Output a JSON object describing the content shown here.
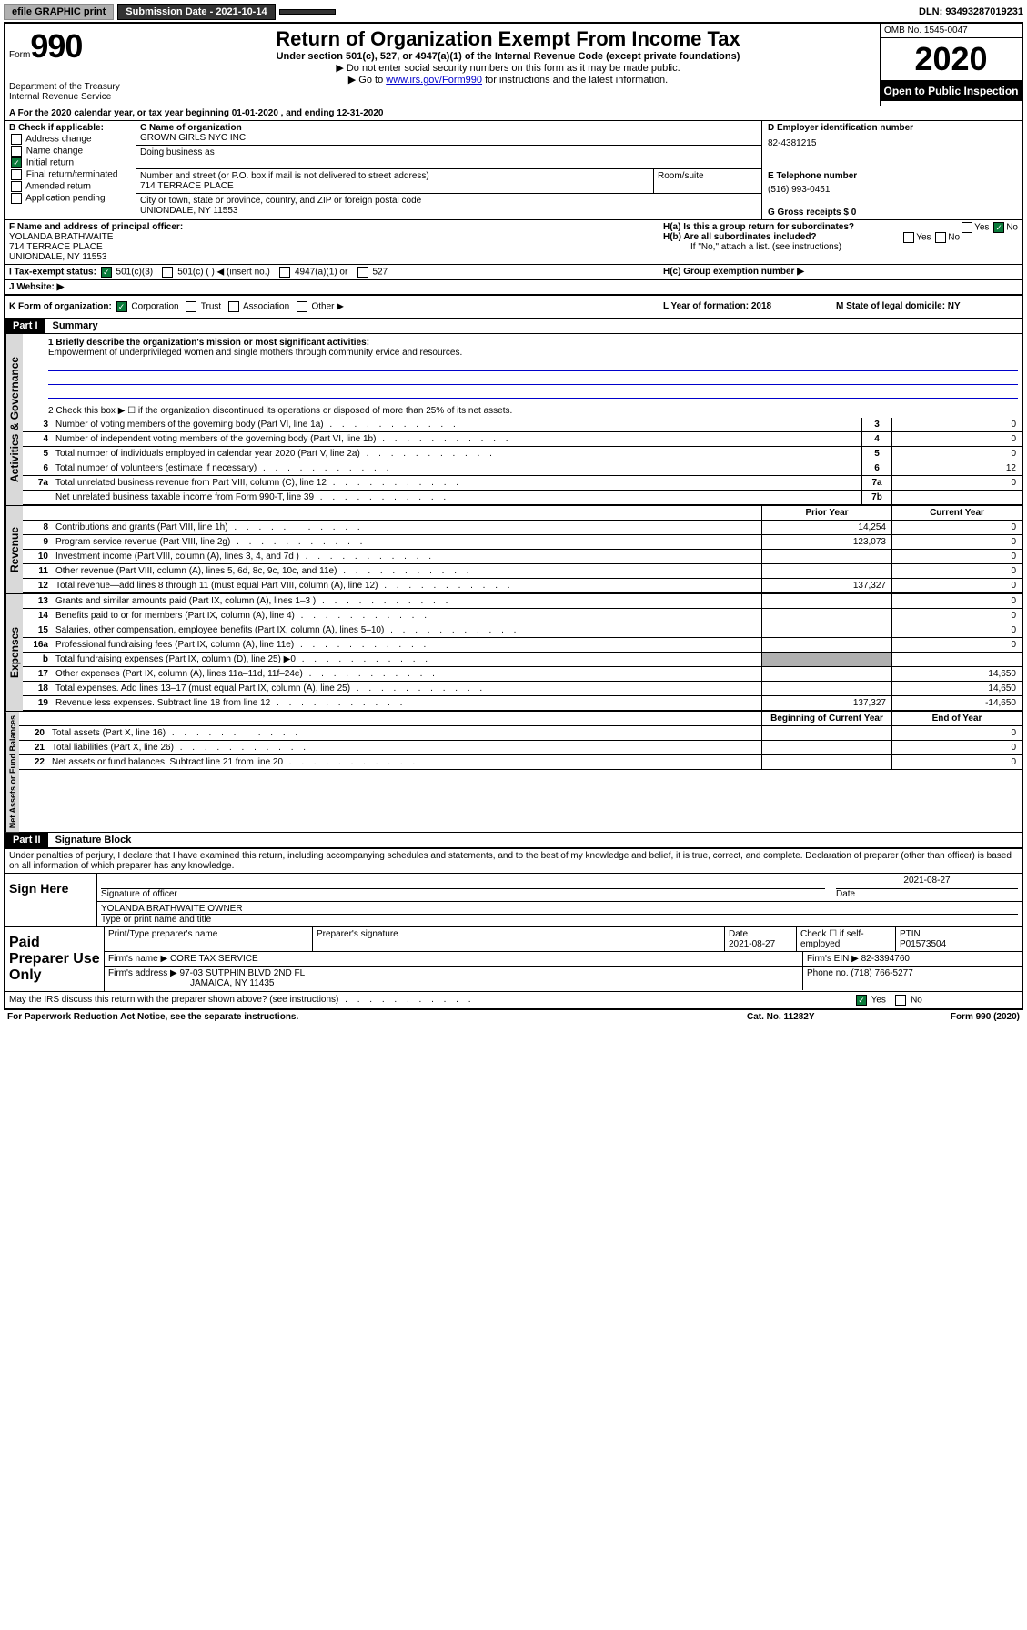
{
  "topbar": {
    "efile": "efile GRAPHIC print",
    "submission": "Submission Date - 2021-10-14",
    "dln": "DLN: 93493287019231"
  },
  "header": {
    "form_label": "Form",
    "form_number": "990",
    "dept": "Department of the Treasury\nInternal Revenue Service",
    "title": "Return of Organization Exempt From Income Tax",
    "subtitle": "Under section 501(c), 527, or 4947(a)(1) of the Internal Revenue Code (except private foundations)",
    "inst1": "▶ Do not enter social security numbers on this form as it may be made public.",
    "inst2_pre": "▶ Go to ",
    "inst2_link": "www.irs.gov/Form990",
    "inst2_post": " for instructions and the latest information.",
    "omb": "OMB No. 1545-0047",
    "year": "2020",
    "open": "Open to Public Inspection"
  },
  "row_a": "A For the 2020 calendar year, or tax year beginning 01-01-2020   , and ending 12-31-2020",
  "b": {
    "label": "B Check if applicable:",
    "items": [
      "Address change",
      "Name change",
      "Initial return",
      "Final return/terminated",
      "Amended return",
      "Application pending"
    ],
    "checked_index": 2
  },
  "c": {
    "name_label": "C Name of organization",
    "name": "GROWN GIRLS NYC INC",
    "dba_label": "Doing business as",
    "addr_label": "Number and street (or P.O. box if mail is not delivered to street address)",
    "addr": "714 TERRACE PLACE",
    "room_label": "Room/suite",
    "city_label": "City or town, state or province, country, and ZIP or foreign postal code",
    "city": "UNIONDALE, NY  11553"
  },
  "d": {
    "label": "D Employer identification number",
    "value": "82-4381215"
  },
  "e": {
    "label": "E Telephone number",
    "value": "(516) 993-0451"
  },
  "g": {
    "label": "G Gross receipts $ 0"
  },
  "f": {
    "label": "F  Name and address of principal officer:",
    "name": "YOLANDA BRATHWAITE",
    "addr": "714 TERRACE PLACE",
    "city": "UNIONDALE, NY  11553"
  },
  "h": {
    "a": "H(a)  Is this a group return for subordinates?",
    "b": "H(b)  Are all subordinates included?",
    "note": "If \"No,\" attach a list. (see instructions)",
    "c": "H(c)  Group exemption number ▶",
    "yes": "Yes",
    "no": "No"
  },
  "i": {
    "label": "I    Tax-exempt status:",
    "opts": [
      "501(c)(3)",
      "501(c) (  ) ◀ (insert no.)",
      "4947(a)(1) or",
      "527"
    ]
  },
  "j": {
    "label": "J    Website: ▶"
  },
  "k": {
    "label": "K Form of organization:",
    "opts": [
      "Corporation",
      "Trust",
      "Association",
      "Other ▶"
    ],
    "l": "L Year of formation: 2018",
    "m": "M State of legal domicile: NY"
  },
  "part1": {
    "header": "Part I",
    "title": "Summary"
  },
  "summary": {
    "l1_label": "1  Briefly describe the organization's mission or most significant activities:",
    "l1_text": "Empowerment of underprivileged women and single mothers through community ervice and resources.",
    "l2": "2    Check this box ▶ ☐  if the organization discontinued its operations or disposed of more than 25% of its net assets.",
    "lines": [
      {
        "n": "3",
        "t": "Number of voting members of the governing body (Part VI, line 1a)",
        "box": "3",
        "v": "0"
      },
      {
        "n": "4",
        "t": "Number of independent voting members of the governing body (Part VI, line 1b)",
        "box": "4",
        "v": "0"
      },
      {
        "n": "5",
        "t": "Total number of individuals employed in calendar year 2020 (Part V, line 2a)",
        "box": "5",
        "v": "0"
      },
      {
        "n": "6",
        "t": "Total number of volunteers (estimate if necessary)",
        "box": "6",
        "v": "12"
      },
      {
        "n": "7a",
        "t": "Total unrelated business revenue from Part VIII, column (C), line 12",
        "box": "7a",
        "v": "0"
      },
      {
        "n": "",
        "t": "Net unrelated business taxable income from Form 990-T, line 39",
        "box": "7b",
        "v": ""
      }
    ],
    "col_prior": "Prior Year",
    "col_current": "Current Year",
    "col_begin": "Beginning of Current Year",
    "col_end": "End of Year",
    "revenue": [
      {
        "n": "8",
        "t": "Contributions and grants (Part VIII, line 1h)",
        "p": "14,254",
        "c": "0"
      },
      {
        "n": "9",
        "t": "Program service revenue (Part VIII, line 2g)",
        "p": "123,073",
        "c": "0"
      },
      {
        "n": "10",
        "t": "Investment income (Part VIII, column (A), lines 3, 4, and 7d )",
        "p": "",
        "c": "0"
      },
      {
        "n": "11",
        "t": "Other revenue (Part VIII, column (A), lines 5, 6d, 8c, 9c, 10c, and 11e)",
        "p": "",
        "c": "0"
      },
      {
        "n": "12",
        "t": "Total revenue—add lines 8 through 11 (must equal Part VIII, column (A), line 12)",
        "p": "137,327",
        "c": "0"
      }
    ],
    "expenses": [
      {
        "n": "13",
        "t": "Grants and similar amounts paid (Part IX, column (A), lines 1–3 )",
        "p": "",
        "c": "0"
      },
      {
        "n": "14",
        "t": "Benefits paid to or for members (Part IX, column (A), line 4)",
        "p": "",
        "c": "0"
      },
      {
        "n": "15",
        "t": "Salaries, other compensation, employee benefits (Part IX, column (A), lines 5–10)",
        "p": "",
        "c": "0"
      },
      {
        "n": "16a",
        "t": "Professional fundraising fees (Part IX, column (A), line 11e)",
        "p": "",
        "c": "0"
      },
      {
        "n": "b",
        "t": "Total fundraising expenses (Part IX, column (D), line 25) ▶0",
        "p": "gray",
        "c": "gray"
      },
      {
        "n": "17",
        "t": "Other expenses (Part IX, column (A), lines 11a–11d, 11f–24e)",
        "p": "",
        "c": "14,650"
      },
      {
        "n": "18",
        "t": "Total expenses. Add lines 13–17 (must equal Part IX, column (A), line 25)",
        "p": "",
        "c": "14,650"
      },
      {
        "n": "19",
        "t": "Revenue less expenses. Subtract line 18 from line 12",
        "p": "137,327",
        "c": "-14,650"
      }
    ],
    "net": [
      {
        "n": "20",
        "t": "Total assets (Part X, line 16)",
        "p": "",
        "c": "0"
      },
      {
        "n": "21",
        "t": "Total liabilities (Part X, line 26)",
        "p": "",
        "c": "0"
      },
      {
        "n": "22",
        "t": "Net assets or fund balances. Subtract line 21 from line 20",
        "p": "",
        "c": "0"
      }
    ]
  },
  "part2": {
    "header": "Part II",
    "title": "Signature Block"
  },
  "sig": {
    "declare": "Under penalties of perjury, I declare that I have examined this return, including accompanying schedules and statements, and to the best of my knowledge and belief, it is true, correct, and complete. Declaration of preparer (other than officer) is based on all information of which preparer has any knowledge.",
    "sign_here": "Sign Here",
    "sig_officer": "Signature of officer",
    "date": "2021-08-27",
    "date_label": "Date",
    "name": "YOLANDA BRATHWAITE  OWNER",
    "name_label": "Type or print name and title"
  },
  "paid": {
    "label": "Paid Preparer Use Only",
    "h1": "Print/Type preparer's name",
    "h2": "Preparer's signature",
    "h3": "Date",
    "h3v": "2021-08-27",
    "h4": "Check ☐ if self-employed",
    "h5": "PTIN",
    "h5v": "P01573504",
    "firm_name_label": "Firm's name    ▶",
    "firm_name": "CORE TAX SERVICE",
    "firm_ein_label": "Firm's EIN ▶",
    "firm_ein": "82-3394760",
    "firm_addr_label": "Firm's address ▶",
    "firm_addr": "97-03 SUTPHIN BLVD 2ND FL",
    "firm_city": "JAMAICA, NY  11435",
    "phone_label": "Phone no.",
    "phone": "(718) 766-5277"
  },
  "bottom": {
    "discuss": "May the IRS discuss this return with the preparer shown above? (see instructions)",
    "yes": "Yes",
    "no": "No"
  },
  "footer": {
    "left": "For Paperwork Reduction Act Notice, see the separate instructions.",
    "mid": "Cat. No. 11282Y",
    "right": "Form 990 (2020)"
  },
  "labels": {
    "ag": "Activities & Governance",
    "rev": "Revenue",
    "exp": "Expenses",
    "net": "Net Assets or Fund Balances"
  }
}
